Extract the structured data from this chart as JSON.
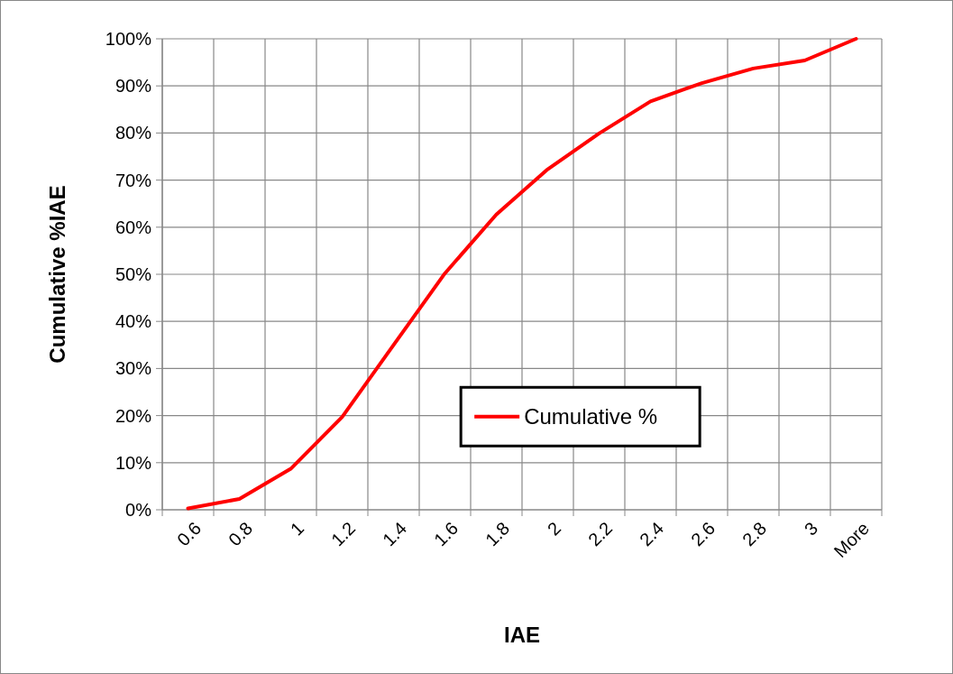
{
  "chart_data": {
    "type": "line",
    "xlabel": "IAE",
    "ylabel": "Cumulative %IAE",
    "categories": [
      "0.6",
      "0.8",
      "1",
      "1.2",
      "1.4",
      "1.6",
      "1.8",
      "2",
      "2.2",
      "2.4",
      "2.6",
      "2.8",
      "3",
      "More"
    ],
    "series": [
      {
        "name": "Cumulative %",
        "color": "#ff0000",
        "values": [
          0.3,
          2.3,
          8.7,
          19.7,
          35,
          50.2,
          62.7,
          72.3,
          79.9,
          86.7,
          90.6,
          93.7,
          95.4,
          100
        ]
      }
    ],
    "ylim": [
      0,
      100
    ],
    "yticks": [
      {
        "value": 0,
        "label": "0%"
      },
      {
        "value": 10,
        "label": "10%"
      },
      {
        "value": 20,
        "label": "20%"
      },
      {
        "value": 30,
        "label": "30%"
      },
      {
        "value": 40,
        "label": "40%"
      },
      {
        "value": 50,
        "label": "50%"
      },
      {
        "value": 60,
        "label": "60%"
      },
      {
        "value": 70,
        "label": "70%"
      },
      {
        "value": 80,
        "label": "80%"
      },
      {
        "value": 90,
        "label": "90%"
      },
      {
        "value": 100,
        "label": "100%"
      }
    ],
    "grid": true,
    "legend": "bottom right",
    "marker": "none",
    "line_style": "solid"
  }
}
